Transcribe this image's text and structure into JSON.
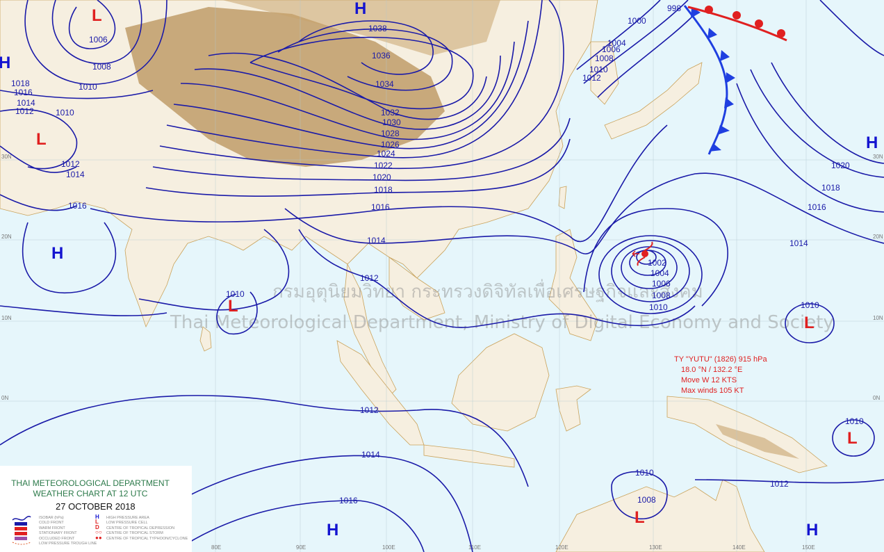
{
  "legend": {
    "org": "THAI METEOROLOGICAL DEPARTMENT",
    "chart": "WEATHER CHART AT   12   UTC",
    "date": "27 OCTOBER 2018",
    "items_left": [
      "ISOBAR (hPa)",
      "COLD FRONT",
      "WARM FRONT",
      "STATIONARY FRONT",
      "OCCLUDED FRONT",
      "LOW PRESSURE TROUGH LINE"
    ],
    "items_right": [
      "HIGH PRESSURE AREA",
      "LOW PRESSURE CELL",
      "CENTRE OF TROPICAL DEPRESSION",
      "CENTRE OF TROPICAL STORM",
      "CENTRE OF TROPICAL TYPHOON/CYCLONE"
    ],
    "symbols_right": [
      "H",
      "L",
      "D"
    ]
  },
  "typhoon": {
    "name_line": "TY \"YUTU\" (1826) 915 hPa",
    "position": "18.0 °N / 132.2 °E",
    "movement": "Move W 12 KTS",
    "max_winds": "Max winds 105 KT"
  },
  "watermark": {
    "thai": "กรมอุตุนิยมวิทยา กระทรวงดิจิทัลเพื่อเศรษฐกิจและสังคม",
    "english": "Thai Meteorological Department, Ministry of Digital Economy and Society"
  },
  "longitudes": [
    "80E",
    "90E",
    "100E",
    "110E",
    "120E",
    "130E",
    "140E",
    "150E"
  ],
  "latitudes": [
    "30N",
    "20N",
    "10N",
    "0N"
  ],
  "pressure_centers": [
    "H",
    "H",
    "H",
    "H",
    "H",
    "H",
    "L",
    "L",
    "L",
    "L",
    "L",
    "L"
  ],
  "isobar_labels": [
    "1038",
    "1036",
    "1034",
    "1032",
    "1030",
    "1028",
    "1026",
    "1024",
    "1022",
    "1020",
    "1018",
    "1016",
    "1014",
    "1012",
    "1012",
    "1014",
    "1016",
    "1010",
    "1010",
    "1008",
    "1006",
    "1018",
    "1016",
    "1014",
    "1012",
    "1010",
    "1012",
    "1014",
    "1016",
    "1002",
    "1004",
    "1006",
    "1008",
    "1010",
    "1014",
    "1016",
    "1018",
    "1020",
    "1010",
    "1010",
    "1012",
    "1010",
    "1008",
    "1012",
    "1010",
    "1008",
    "1006",
    "1004",
    "1000",
    "998"
  ],
  "colors": {
    "isobar": "#1a1aa8",
    "high": "#1414d0",
    "low": "#e02020",
    "cold_front": "#1f3fe0",
    "warm_front": "#e02020",
    "sea": "#e6f6fb",
    "land": "#f6efe0",
    "highland": "#b8925a",
    "title": "#2c7a4a"
  }
}
